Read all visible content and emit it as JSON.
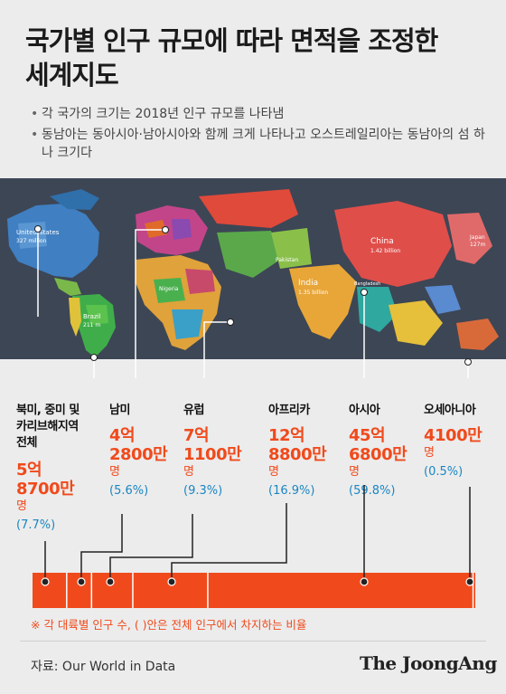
{
  "header": {
    "title_line1": "국가별 인구 규모에 따라 면적을 조정한",
    "title_line2": "세계지도"
  },
  "bullets": [
    "각 국가의 크기는 2018년 인구 규모를 나타냄",
    "동남아는 동아시아·남아시아와 함께 크게 나타나고 오스트레일리아는 동남아의 섬 하나 크기다"
  ],
  "map_labels": {
    "us": "United States",
    "us_pop": "327 million",
    "brazil": "Brazil",
    "brazil_pop": "211 m",
    "nigeria": "Nigeria",
    "pakistan": "Pakistan",
    "india": "India",
    "india_pop": "1.35 billion",
    "china": "China",
    "china_pop": "1.42 billion",
    "japan": "Japan",
    "japan_pop": "127m",
    "bangladesh": "Bangladesh"
  },
  "chart_data": {
    "type": "bar",
    "orientation": "stacked-horizontal",
    "unit": "명",
    "categories": [
      "북미, 중미 및 카리브해지역 전체",
      "남미",
      "유럽",
      "아프리카",
      "아시아",
      "오세아니아"
    ],
    "values": [
      587000000,
      428000000,
      711000000,
      1288000000,
      4568000000,
      41000000
    ],
    "value_labels": [
      "5억 8700만",
      "4억 2800만",
      "7억 1100만",
      "12억 8800만",
      "45억 6800만",
      "4100만"
    ],
    "shares": [
      "(7.7%)",
      "(5.6%)",
      "(9.3%)",
      "(16.9%)",
      "(59.8%)",
      "(0.5%)"
    ],
    "share_values": [
      7.7,
      5.6,
      9.3,
      16.9,
      59.8,
      0.5
    ],
    "bar_color": "#f04a1c",
    "label_colors": {
      "region": "#111111",
      "value": "#f04a1c",
      "share": "#1a86c2"
    },
    "map_background": "#3d4655"
  },
  "region_labels": {
    "namerica_line1": "북미, 중미 및",
    "namerica_line2": "카리브해지역",
    "namerica_line3": "전체",
    "namerica_val1": "5억",
    "namerica_val2": "8700만",
    "namerica_unit": "명",
    "samerica": "남미",
    "samerica_val1": "4억",
    "samerica_val2": "2800만",
    "samerica_unit": "명",
    "europe": "유럽",
    "europe_val1": "7억",
    "europe_val2": "1100만",
    "europe_unit": "명",
    "africa": "아프리카",
    "africa_val1": "12억",
    "africa_val2": "8800만",
    "africa_unit": "명",
    "asia": "아시아",
    "asia_val1": "45억",
    "asia_val2": "6800만",
    "asia_unit": "명",
    "oceania": "오세아니아",
    "oceania_val1": "4100만",
    "oceania_unit": "명"
  },
  "footer": {
    "note": "※ 각 대륙별 인구 수, ( )안은 전체 인구에서 차지하는 비율",
    "source": "자료: Our World in Data",
    "logo": "The JoongAng"
  }
}
